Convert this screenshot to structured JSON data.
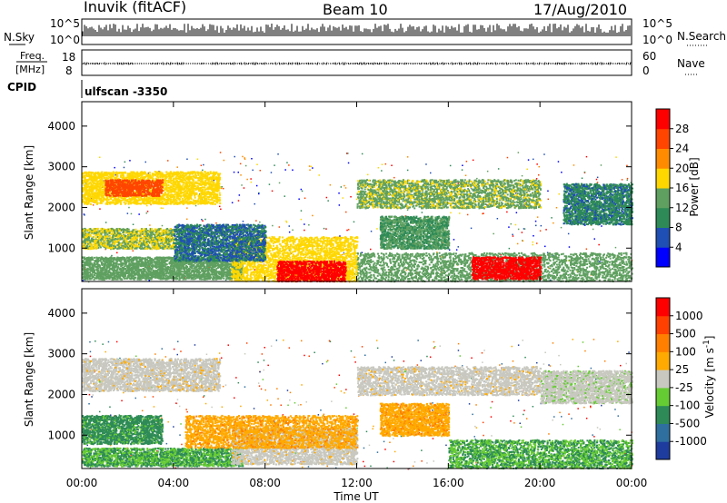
{
  "header": {
    "station": "Inuvik (fitACF)",
    "beam": "Beam 10",
    "date": "17/Aug/2010"
  },
  "noise_panel": {
    "left_label": "N.Sky",
    "right_label": "N.Search",
    "left_ticks": [
      "10^5",
      "10^0"
    ],
    "right_ticks": [
      "10^5",
      "10^0"
    ]
  },
  "freq_panel": {
    "left_label_1": "Freq.",
    "left_label_2": "[MHz]",
    "right_label": "Nave",
    "left_ticks": [
      "18",
      "8"
    ],
    "right_ticks": [
      "60",
      "0"
    ]
  },
  "cpid_panel": {
    "label": "CPID",
    "value": "ulfscan -3350"
  },
  "chart_data": [
    {
      "type": "heatmap",
      "name": "power",
      "ylabel": "Slant Range [km]",
      "ylim": [
        180,
        4600
      ],
      "yticks": [
        "4000",
        "3000",
        "2000",
        "1000"
      ],
      "colorbar": {
        "label": "Power [dB]",
        "ticks": [
          "28",
          "24",
          "20",
          "16",
          "12",
          "8",
          "4"
        ],
        "colors": [
          "#0000ff",
          "#1f4fb4",
          "#2e8b57",
          "#5fa060",
          "#ffd700",
          "#ff8c00",
          "#ff4500",
          "#ff0000"
        ],
        "range": [
          0,
          32
        ]
      },
      "regions": [
        {
          "t": [
            0.0,
            6.0
          ],
          "r": [
            2100,
            2900
          ],
          "value": 18
        },
        {
          "t": [
            1.0,
            3.5
          ],
          "r": [
            2300,
            2700
          ],
          "value": 26
        },
        {
          "t": [
            0.0,
            4.0
          ],
          "r": [
            1000,
            1500
          ],
          "value": 16
        },
        {
          "t": [
            0.0,
            7.0
          ],
          "r": [
            250,
            800
          ],
          "value": 14
        },
        {
          "t": [
            6.5,
            12.0
          ],
          "r": [
            200,
            1300
          ],
          "value": 18
        },
        {
          "t": [
            8.5,
            11.5
          ],
          "r": [
            200,
            700
          ],
          "value": 30
        },
        {
          "t": [
            12.0,
            20.0
          ],
          "r": [
            2000,
            2700
          ],
          "value": 15
        },
        {
          "t": [
            13.0,
            16.0
          ],
          "r": [
            1000,
            1800
          ],
          "value": 12
        },
        {
          "t": [
            12.0,
            24.0
          ],
          "r": [
            200,
            900
          ],
          "value": 14
        },
        {
          "t": [
            17.0,
            20.0
          ],
          "r": [
            250,
            800
          ],
          "value": 30
        },
        {
          "t": [
            21.0,
            24.0
          ],
          "r": [
            1600,
            2600
          ],
          "value": 9
        },
        {
          "t": [
            4.0,
            8.0
          ],
          "r": [
            700,
            1600
          ],
          "value": 8
        }
      ]
    },
    {
      "type": "heatmap",
      "name": "velocity",
      "ylabel": "Slant Range [km]",
      "xlabel": "Time UT",
      "ylim": [
        180,
        4600
      ],
      "yticks": [
        "4000",
        "3000",
        "2000",
        "1000"
      ],
      "xticks": [
        "00:00",
        "04:00",
        "08:00",
        "12:00",
        "16:00",
        "20:00",
        "00:00"
      ],
      "xlim": [
        0,
        24
      ],
      "colorbar": {
        "label": "Velocity [m s^-1]",
        "ticks": [
          "1000",
          "500",
          "100",
          "25",
          "-25",
          "-100",
          "-500",
          "-1000"
        ],
        "colors": [
          "#1e3c9e",
          "#2e6fa0",
          "#2e8b57",
          "#66cc33",
          "#c8c8c0",
          "#ffaa00",
          "#ff7f00",
          "#ff4000",
          "#ff0000"
        ],
        "range": [
          -1200,
          1200
        ]
      },
      "regions": [
        {
          "t": [
            0.0,
            6.0
          ],
          "r": [
            2100,
            2900
          ],
          "value": 10
        },
        {
          "t": [
            0.0,
            3.5
          ],
          "r": [
            800,
            1500
          ],
          "value": -500
        },
        {
          "t": [
            0.0,
            7.0
          ],
          "r": [
            250,
            700
          ],
          "value": -400
        },
        {
          "t": [
            6.5,
            12.0
          ],
          "r": [
            300,
            1200
          ],
          "value": 10
        },
        {
          "t": [
            4.5,
            12.0
          ],
          "r": [
            700,
            1500
          ],
          "value": 300
        },
        {
          "t": [
            12.0,
            20.0
          ],
          "r": [
            2000,
            2700
          ],
          "value": 10
        },
        {
          "t": [
            13.0,
            16.0
          ],
          "r": [
            1000,
            1800
          ],
          "value": 300
        },
        {
          "t": [
            16.0,
            24.0
          ],
          "r": [
            200,
            900
          ],
          "value": -400
        },
        {
          "t": [
            20.0,
            24.0
          ],
          "r": [
            1800,
            2600
          ],
          "value": -30
        }
      ]
    }
  ]
}
